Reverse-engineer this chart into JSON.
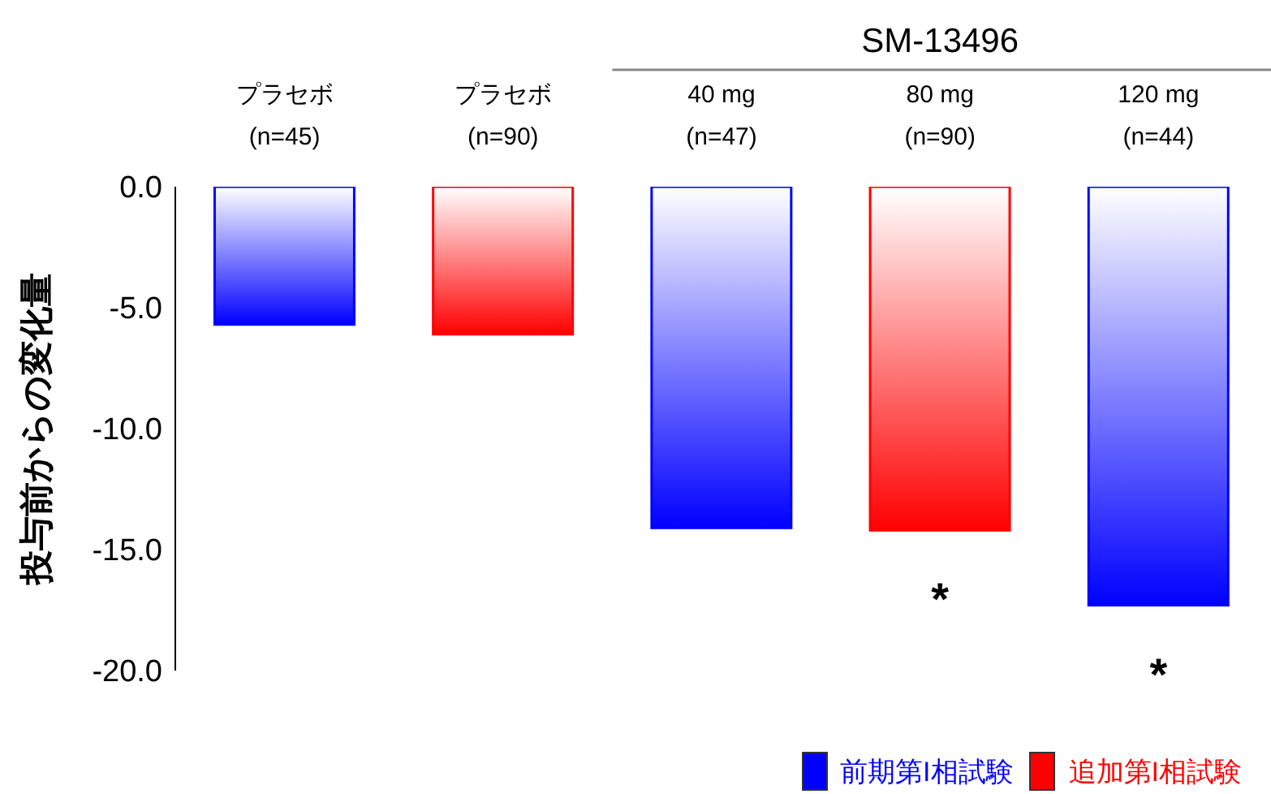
{
  "chart_data": {
    "type": "bar",
    "ylabel": "投与前からの変化量",
    "categories": [
      "プラセボ\n(n=45)",
      "プラセボ\n(n=90)",
      "40 mg\n(n=47)",
      "80 mg\n(n=90)",
      "120 mg\n(n=44)"
    ],
    "series": [
      {
        "name": "前期第I相試験",
        "color": "#0000ff",
        "values": [
          -5.7,
          null,
          -14.1,
          null,
          -17.3
        ],
        "value_labels": [
          null,
          null,
          null,
          null,
          "*"
        ]
      },
      {
        "name": "追加第I相試験",
        "color": "#ff0000",
        "values": [
          null,
          -6.1,
          null,
          -14.2,
          null
        ],
        "value_labels": [
          null,
          null,
          null,
          "*",
          null
        ]
      }
    ],
    "stacked": true,
    "ylim": [
      -20,
      0
    ],
    "yticks": [
      {
        "value": 0,
        "label": "0.0"
      },
      {
        "value": -5,
        "label": "-5.0"
      },
      {
        "value": -10,
        "label": "-10.0"
      },
      {
        "value": -15,
        "label": "-15.0"
      },
      {
        "value": -20,
        "label": "-20.0"
      }
    ],
    "grid": false,
    "legend": "bottom right",
    "annotations": [
      "SM-13496"
    ]
  }
}
